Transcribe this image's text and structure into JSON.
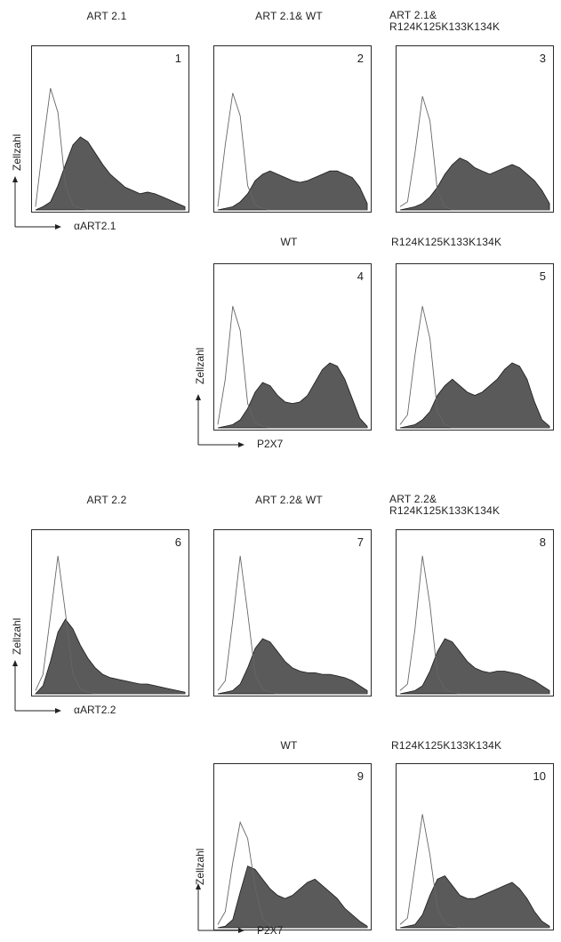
{
  "figure": {
    "groups": [
      {
        "ylabel": "Zellzahl",
        "top_titles": [
          "ART 2.1",
          "ART 2.1& WT",
          "ART 2.1&\nR124K125K133K134K"
        ],
        "top_xlabel": "αART2.1",
        "bottom_titles": [
          "WT",
          "R124K125K133K134K"
        ],
        "bottom_xlabel": "P2X7"
      },
      {
        "ylabel": "Zellzahl",
        "top_titles": [
          "ART 2.2",
          "ART 2.2& WT",
          "ART 2.2&\nR124K125K133K134K"
        ],
        "top_xlabel": "αART2.2",
        "bottom_titles": [
          "WT",
          "R124K125K133K134K"
        ],
        "bottom_xlabel": "P2X7"
      }
    ]
  },
  "colors": {
    "fill": "#5a5a5a",
    "outline": "#1a1a1a",
    "control": "#666666"
  },
  "chart_data": [
    {
      "type": "area",
      "panel": "1",
      "title": "ART 2.1",
      "xlabel": "αART2.1",
      "ylabel": "Zellzahl",
      "series": [
        {
          "x": [
            0,
            5,
            10,
            15,
            20,
            25,
            30,
            35,
            40,
            45,
            50,
            55,
            60,
            65,
            70,
            75,
            80,
            85,
            90,
            95,
            100
          ],
          "values": [
            0,
            2,
            5,
            15,
            28,
            40,
            45,
            42,
            35,
            28,
            22,
            18,
            14,
            12,
            10,
            11,
            10,
            8,
            6,
            4,
            2
          ]
        },
        {
          "x": [
            0,
            5,
            10,
            15,
            20,
            25,
            30,
            35,
            40,
            45,
            50,
            55,
            60,
            65,
            70,
            75,
            80,
            85,
            90,
            95,
            100
          ],
          "values": [
            2,
            40,
            75,
            60,
            15,
            3,
            1,
            0,
            0,
            0,
            0,
            0,
            0,
            0,
            0,
            0,
            0,
            0,
            0,
            0,
            0
          ]
        }
      ]
    },
    {
      "type": "area",
      "panel": "2",
      "title": "ART 2.1& WT",
      "series": [
        {
          "x": [
            0,
            5,
            10,
            15,
            20,
            25,
            30,
            35,
            40,
            45,
            50,
            55,
            60,
            65,
            70,
            75,
            80,
            85,
            90,
            95,
            100
          ],
          "values": [
            0,
            1,
            2,
            5,
            10,
            18,
            22,
            24,
            22,
            20,
            18,
            17,
            18,
            20,
            22,
            24,
            24,
            22,
            20,
            14,
            4
          ]
        },
        {
          "x": [
            0,
            5,
            10,
            15,
            20,
            25,
            30,
            35,
            40,
            45,
            50,
            55,
            60,
            65,
            70,
            75,
            80,
            85,
            90,
            95,
            100
          ],
          "values": [
            2,
            40,
            72,
            58,
            15,
            3,
            1,
            0,
            0,
            0,
            0,
            0,
            0,
            0,
            0,
            0,
            0,
            0,
            0,
            0,
            0
          ]
        }
      ]
    },
    {
      "type": "area",
      "panel": "3",
      "title": "ART 2.1&\nR124K125K133K134K",
      "series": [
        {
          "x": [
            0,
            5,
            10,
            15,
            20,
            25,
            30,
            35,
            40,
            45,
            50,
            55,
            60,
            65,
            70,
            75,
            80,
            85,
            90,
            95,
            100
          ],
          "values": [
            0,
            1,
            2,
            4,
            8,
            14,
            22,
            28,
            32,
            30,
            26,
            24,
            22,
            24,
            26,
            28,
            26,
            22,
            18,
            12,
            4
          ]
        },
        {
          "x": [
            0,
            5,
            10,
            15,
            20,
            25,
            30,
            35,
            40,
            45,
            50,
            55,
            60,
            65,
            70,
            75,
            80,
            85,
            90,
            95,
            100
          ],
          "values": [
            2,
            5,
            35,
            70,
            55,
            12,
            2,
            0,
            0,
            0,
            0,
            0,
            0,
            0,
            0,
            0,
            0,
            0,
            0,
            0,
            0
          ]
        }
      ]
    },
    {
      "type": "area",
      "panel": "4",
      "title": "WT",
      "xlabel": "P2X7",
      "ylabel": "Zellzahl",
      "series": [
        {
          "x": [
            0,
            5,
            10,
            15,
            20,
            25,
            30,
            35,
            40,
            45,
            50,
            55,
            60,
            65,
            70,
            75,
            80,
            85,
            90,
            95,
            100
          ],
          "values": [
            0,
            1,
            2,
            5,
            12,
            22,
            28,
            26,
            20,
            16,
            15,
            16,
            20,
            28,
            36,
            40,
            38,
            30,
            18,
            6,
            1
          ]
        },
        {
          "x": [
            0,
            5,
            10,
            15,
            20,
            25,
            30,
            35,
            40,
            45,
            50,
            55,
            60,
            65,
            70,
            75,
            80,
            85,
            90,
            95,
            100
          ],
          "values": [
            2,
            30,
            75,
            60,
            15,
            3,
            1,
            0,
            0,
            0,
            0,
            0,
            0,
            0,
            0,
            0,
            0,
            0,
            0,
            0,
            0
          ]
        }
      ]
    },
    {
      "type": "area",
      "panel": "5",
      "title": "R124K125K133K134K",
      "series": [
        {
          "x": [
            0,
            5,
            10,
            15,
            20,
            25,
            30,
            35,
            40,
            45,
            50,
            55,
            60,
            65,
            70,
            75,
            80,
            85,
            90,
            95,
            100
          ],
          "values": [
            0,
            1,
            2,
            5,
            10,
            20,
            26,
            30,
            26,
            22,
            20,
            22,
            26,
            30,
            36,
            40,
            38,
            30,
            16,
            5,
            1
          ]
        },
        {
          "x": [
            0,
            5,
            10,
            15,
            20,
            25,
            30,
            35,
            40,
            45,
            50,
            55,
            60,
            65,
            70,
            75,
            80,
            85,
            90,
            95,
            100
          ],
          "values": [
            2,
            8,
            45,
            75,
            55,
            10,
            2,
            0,
            0,
            0,
            0,
            0,
            0,
            0,
            0,
            0,
            0,
            0,
            0,
            0,
            0
          ]
        }
      ]
    },
    {
      "type": "area",
      "panel": "6",
      "title": "ART 2.2",
      "xlabel": "αART2.2",
      "ylabel": "Zellzahl",
      "series": [
        {
          "x": [
            0,
            5,
            10,
            15,
            20,
            25,
            30,
            35,
            40,
            45,
            50,
            55,
            60,
            65,
            70,
            75,
            80,
            85,
            90,
            95,
            100
          ],
          "values": [
            0,
            5,
            20,
            38,
            46,
            40,
            30,
            22,
            16,
            12,
            10,
            9,
            8,
            7,
            6,
            6,
            5,
            4,
            3,
            2,
            1
          ]
        },
        {
          "x": [
            0,
            5,
            10,
            15,
            20,
            25,
            30,
            35,
            40,
            45,
            50,
            55,
            60,
            65,
            70,
            75,
            80,
            85,
            90,
            95,
            100
          ],
          "values": [
            2,
            12,
            48,
            85,
            50,
            12,
            3,
            1,
            0,
            0,
            0,
            0,
            0,
            0,
            0,
            0,
            0,
            0,
            0,
            0,
            0
          ]
        }
      ]
    },
    {
      "type": "area",
      "panel": "7",
      "title": "ART 2.2& WT",
      "series": [
        {
          "x": [
            0,
            5,
            10,
            15,
            20,
            25,
            30,
            35,
            40,
            45,
            50,
            55,
            60,
            65,
            70,
            75,
            80,
            85,
            90,
            95,
            100
          ],
          "values": [
            0,
            1,
            2,
            6,
            16,
            28,
            34,
            32,
            26,
            20,
            16,
            14,
            13,
            13,
            12,
            12,
            11,
            10,
            8,
            5,
            2
          ]
        },
        {
          "x": [
            0,
            5,
            10,
            15,
            20,
            25,
            30,
            35,
            40,
            45,
            50,
            55,
            60,
            65,
            70,
            75,
            80,
            85,
            90,
            95,
            100
          ],
          "values": [
            2,
            8,
            45,
            85,
            50,
            12,
            3,
            1,
            0,
            0,
            0,
            0,
            0,
            0,
            0,
            0,
            0,
            0,
            0,
            0,
            0
          ]
        }
      ]
    },
    {
      "type": "area",
      "panel": "8",
      "title": "ART 2.2&\nR124K125K133K134K",
      "series": [
        {
          "x": [
            0,
            5,
            10,
            15,
            20,
            25,
            30,
            35,
            40,
            45,
            50,
            55,
            60,
            65,
            70,
            75,
            80,
            85,
            90,
            95,
            100
          ],
          "values": [
            0,
            1,
            2,
            5,
            14,
            26,
            34,
            32,
            26,
            20,
            16,
            14,
            13,
            14,
            14,
            13,
            12,
            10,
            8,
            5,
            2
          ]
        },
        {
          "x": [
            0,
            5,
            10,
            15,
            20,
            25,
            30,
            35,
            40,
            45,
            50,
            55,
            60,
            65,
            70,
            75,
            80,
            85,
            90,
            95,
            100
          ],
          "values": [
            2,
            6,
            40,
            85,
            55,
            12,
            3,
            1,
            0,
            0,
            0,
            0,
            0,
            0,
            0,
            0,
            0,
            0,
            0,
            0,
            0
          ]
        }
      ]
    },
    {
      "type": "area",
      "panel": "9",
      "title": "WT",
      "xlabel": "P2X7",
      "ylabel": "Zellzahl",
      "series": [
        {
          "x": [
            0,
            5,
            10,
            15,
            20,
            25,
            30,
            35,
            40,
            45,
            50,
            55,
            60,
            65,
            70,
            75,
            80,
            85,
            90,
            95,
            100
          ],
          "values": [
            0,
            1,
            5,
            22,
            38,
            36,
            30,
            24,
            20,
            18,
            20,
            24,
            28,
            30,
            26,
            22,
            18,
            12,
            8,
            4,
            1
          ]
        },
        {
          "x": [
            0,
            5,
            10,
            15,
            20,
            25,
            30,
            35,
            40,
            45,
            50,
            55,
            60,
            65,
            70,
            75,
            80,
            85,
            90,
            95,
            100
          ],
          "values": [
            2,
            10,
            40,
            65,
            55,
            25,
            6,
            1,
            0,
            0,
            0,
            0,
            0,
            0,
            0,
            0,
            0,
            0,
            0,
            0,
            0
          ]
        }
      ]
    },
    {
      "type": "area",
      "panel": "10",
      "title": "R124K125K133K134K",
      "series": [
        {
          "x": [
            0,
            5,
            10,
            15,
            20,
            25,
            30,
            35,
            40,
            45,
            50,
            55,
            60,
            65,
            70,
            75,
            80,
            85,
            90,
            95,
            100
          ],
          "values": [
            0,
            1,
            2,
            8,
            20,
            30,
            32,
            26,
            20,
            18,
            18,
            20,
            22,
            24,
            26,
            28,
            24,
            18,
            10,
            4,
            1
          ]
        },
        {
          "x": [
            0,
            5,
            10,
            15,
            20,
            25,
            30,
            35,
            40,
            45,
            50,
            55,
            60,
            65,
            70,
            75,
            80,
            85,
            90,
            95,
            100
          ],
          "values": [
            2,
            6,
            38,
            70,
            45,
            12,
            3,
            1,
            0,
            0,
            0,
            0,
            0,
            0,
            0,
            0,
            0,
            0,
            0,
            0,
            0
          ]
        }
      ]
    }
  ]
}
